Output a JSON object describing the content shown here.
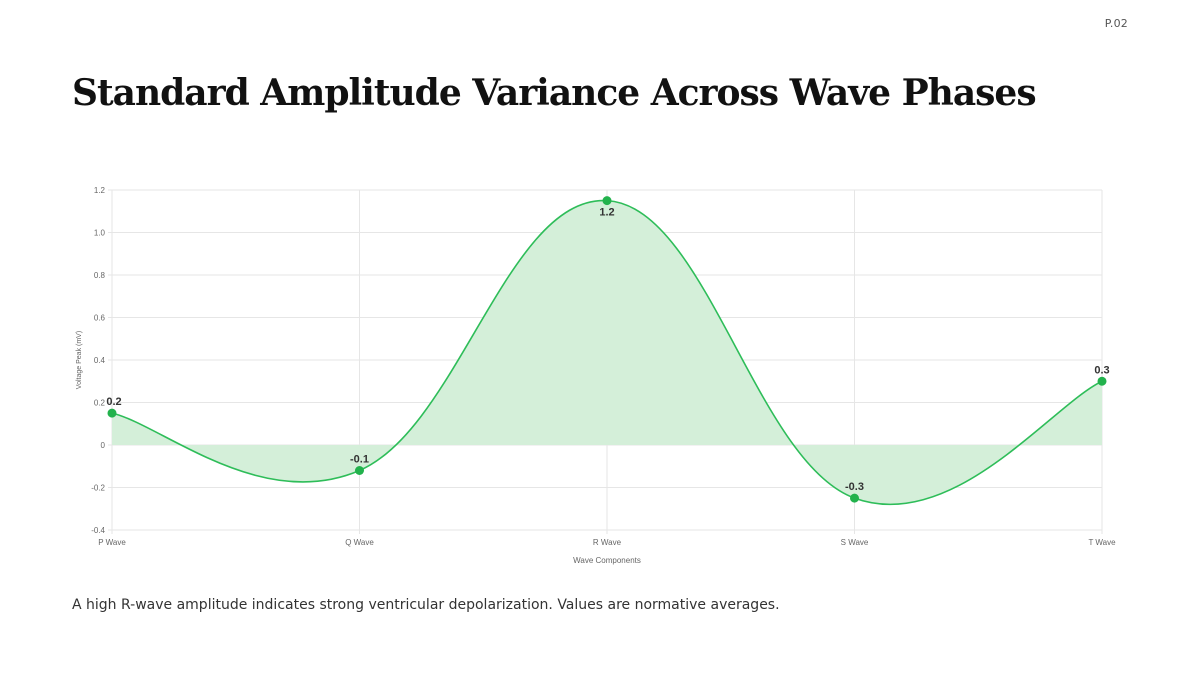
{
  "page": {
    "number": "P.02",
    "title": "Standard Amplitude Variance Across Wave Phases",
    "caption": "A high R-wave amplitude indicates strong ventricular depolarization. Values are normative averages."
  },
  "colors": {
    "line": "#2ebd59",
    "fill": "#d4efd9",
    "point": "#22b24c",
    "grid": "#e6e6e6",
    "axis_text": "#666666"
  },
  "chart_data": {
    "type": "line",
    "area_fill": true,
    "smooth": true,
    "categories": [
      "P Wave",
      "Q Wave",
      "R Wave",
      "S Wave",
      "T Wave"
    ],
    "values": [
      0.15,
      -0.12,
      1.15,
      -0.25,
      0.3
    ],
    "data_labels": [
      "0.2",
      "-0.1",
      "1.2",
      "-0.3",
      "0.3"
    ],
    "xlabel": "Wave Components",
    "ylabel": "Voltage Peak (mV)",
    "ylim": [
      -0.4,
      1.2
    ],
    "yticks": [
      -0.4,
      -0.2,
      0,
      0.2,
      0.4,
      0.6,
      0.8,
      1.0,
      1.2
    ],
    "ytick_labels": [
      "-0.4",
      "-0.2",
      "0",
      "0.2",
      "0.4",
      "0.6",
      "0.8",
      "1.0",
      "1.2"
    ],
    "grid": true,
    "legend": "none"
  }
}
